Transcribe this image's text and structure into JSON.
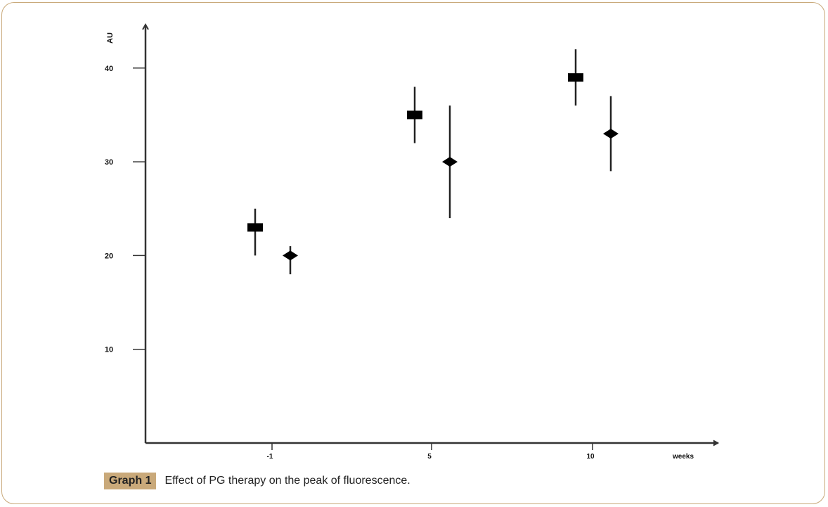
{
  "chart_data": {
    "type": "scatter",
    "title": "",
    "xlabel": "weeks",
    "ylabel": "AU",
    "categories": [
      "-1",
      "5",
      "10"
    ],
    "yticks": [
      "10",
      "20",
      "30",
      "40"
    ],
    "ylim": [
      0,
      44
    ],
    "grid": false,
    "legend": "none",
    "series": [
      {
        "name": "series-square",
        "marker": "square",
        "values": [
          23,
          35,
          39
        ],
        "err_low": [
          20,
          32,
          36
        ],
        "err_high": [
          25,
          38,
          42
        ]
      },
      {
        "name": "series-diamond",
        "marker": "diamond",
        "values": [
          20,
          30,
          33
        ],
        "err_low": [
          18,
          24,
          29
        ],
        "err_high": [
          21,
          36,
          37
        ]
      }
    ]
  },
  "caption": {
    "label": "Graph 1",
    "text": "Effect of PG therapy on the peak of fluorescence."
  },
  "colors": {
    "frame": "#c9a97a",
    "marks": "#000000"
  }
}
